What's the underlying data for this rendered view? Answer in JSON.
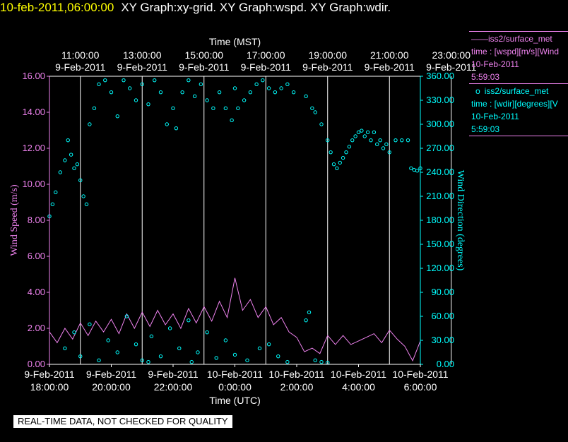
{
  "header": {
    "timestamp": "10-feb-2011,06:00:00",
    "titles": "XY Graph:xy-grid.  XY Graph:wspd.  XY Graph:wdir."
  },
  "disclaimer": "REAL-TIME DATA, NOT CHECKED FOR QUALITY",
  "colors": {
    "speed": "#ee82ee",
    "direction": "#00ffff",
    "grid": "#ffffff",
    "header_time": "#ffff00"
  },
  "legend": {
    "speed": {
      "symbol": "——",
      "line1": "iss2/surface_met",
      "line2": "time : [wspd][m/s][Wind",
      "line3": "10-Feb-2011",
      "line4": "5:59:03"
    },
    "direction": {
      "symbol": "o",
      "line1": "iss2/surface_met",
      "line2": "time : [wdir][degrees][V",
      "line3": "10-Feb-2011",
      "line4": "5:59:03"
    }
  },
  "chart_data": {
    "type": "line",
    "x_axis_top": {
      "title": "Time (MST)",
      "ticks": [
        {
          "t": 1,
          "time": "11:00:00",
          "date": "9-Feb-2011"
        },
        {
          "t": 3,
          "time": "13:00:00",
          "date": "9-Feb-2011"
        },
        {
          "t": 5,
          "time": "15:00:00",
          "date": "9-Feb-2011"
        },
        {
          "t": 7,
          "time": "17:00:00",
          "date": "9-Feb-2011"
        },
        {
          "t": 9,
          "time": "19:00:00",
          "date": "9-Feb-2011"
        },
        {
          "t": 11,
          "time": "21:00:00",
          "date": "9-Feb-2011"
        },
        {
          "t": 13,
          "time": "23:00:00",
          "date": "9-Feb-2011"
        }
      ]
    },
    "x_axis_bottom": {
      "title": "Time (UTC)",
      "range": [
        "9-Feb-2011 18:00:00",
        "10-Feb-2011 6:00:00"
      ],
      "ticks": [
        {
          "t": 0,
          "date": "9-Feb-2011",
          "time": "18:00:00"
        },
        {
          "t": 2,
          "date": "9-Feb-2011",
          "time": "20:00:00"
        },
        {
          "t": 4,
          "date": "9-Feb-2011",
          "time": "22:00:00"
        },
        {
          "t": 6,
          "date": "10-Feb-2011",
          "time": "0:00:00"
        },
        {
          "t": 8,
          "date": "10-Feb-2011",
          "time": "2:00:00"
        },
        {
          "t": 10,
          "date": "10-Feb-2011",
          "time": "4:00:00"
        },
        {
          "t": 12,
          "date": "10-Feb-2011",
          "time": "6:00:00"
        }
      ]
    },
    "y_axis_left": {
      "title": "Wind Speed (m/s)",
      "range": [
        0,
        16
      ],
      "ticks": [
        "0.00",
        "2.00",
        "4.00",
        "6.00",
        "8.00",
        "10.00",
        "12.00",
        "14.00",
        "16.00"
      ]
    },
    "y_axis_right": {
      "title": "Wind Direction (degrees)",
      "range": [
        0,
        360
      ],
      "ticks": [
        "0.00",
        "30.00",
        "60.00",
        "90.00",
        "120.00",
        "150.00",
        "180.00",
        "210.00",
        "240.00",
        "270.00",
        "300.00",
        "330.00",
        "360.00"
      ]
    },
    "grid": "vertical",
    "series": [
      {
        "name": "iss2/surface_met time : [wspd][m/s]",
        "style": "line",
        "axis": "left",
        "points": [
          [
            0,
            1.8
          ],
          [
            0.25,
            1.2
          ],
          [
            0.5,
            2.0
          ],
          [
            0.75,
            1.4
          ],
          [
            1.0,
            2.3
          ],
          [
            1.25,
            1.6
          ],
          [
            1.5,
            2.4
          ],
          [
            1.75,
            1.8
          ],
          [
            2.0,
            2.5
          ],
          [
            2.25,
            1.7
          ],
          [
            2.5,
            2.8
          ],
          [
            2.75,
            2.0
          ],
          [
            3.0,
            2.9
          ],
          [
            3.25,
            2.1
          ],
          [
            3.5,
            3.0
          ],
          [
            3.75,
            2.2
          ],
          [
            4.0,
            2.8
          ],
          [
            4.25,
            2.0
          ],
          [
            4.5,
            3.1
          ],
          [
            4.75,
            2.3
          ],
          [
            5.0,
            3.2
          ],
          [
            5.25,
            2.4
          ],
          [
            5.5,
            3.5
          ],
          [
            5.75,
            2.6
          ],
          [
            6.0,
            4.8
          ],
          [
            6.25,
            3.0
          ],
          [
            6.5,
            3.6
          ],
          [
            6.75,
            2.6
          ],
          [
            7.0,
            3.2
          ],
          [
            7.25,
            2.2
          ],
          [
            7.5,
            2.6
          ],
          [
            7.75,
            1.8
          ],
          [
            8.0,
            1.5
          ],
          [
            8.25,
            0.7
          ],
          [
            8.5,
            0.9
          ],
          [
            8.75,
            0.6
          ],
          [
            9.0,
            1.6
          ],
          [
            9.25,
            1.1
          ],
          [
            9.5,
            1.6
          ],
          [
            9.75,
            1.1
          ],
          [
            10.0,
            1.3
          ],
          [
            10.25,
            1.5
          ],
          [
            10.5,
            1.7
          ],
          [
            10.75,
            1.2
          ],
          [
            11.0,
            1.9
          ],
          [
            11.25,
            1.4
          ],
          [
            11.5,
            1.0
          ],
          [
            11.75,
            0.2
          ],
          [
            12.0,
            1.3
          ]
        ]
      },
      {
        "name": "iss2/surface_met time : [wdir][degrees]",
        "style": "markers",
        "axis": "right",
        "points": [
          [
            0,
            185
          ],
          [
            0.1,
            200
          ],
          [
            0.2,
            215
          ],
          [
            0.35,
            240
          ],
          [
            0.5,
            255
          ],
          [
            0.6,
            280
          ],
          [
            0.7,
            262
          ],
          [
            0.8,
            245
          ],
          [
            0.9,
            250
          ],
          [
            1.0,
            230
          ],
          [
            1.1,
            210
          ],
          [
            1.2,
            200
          ],
          [
            1.3,
            300
          ],
          [
            1.45,
            320
          ],
          [
            1.6,
            350
          ],
          [
            1.8,
            355
          ],
          [
            2.0,
            340
          ],
          [
            2.2,
            310
          ],
          [
            2.4,
            355
          ],
          [
            2.6,
            345
          ],
          [
            2.8,
            330
          ],
          [
            3.0,
            350
          ],
          [
            3.2,
            325
          ],
          [
            3.4,
            355
          ],
          [
            3.6,
            340
          ],
          [
            3.8,
            300
          ],
          [
            4.0,
            320
          ],
          [
            4.1,
            295
          ],
          [
            4.3,
            340
          ],
          [
            4.5,
            355
          ],
          [
            4.7,
            335
          ],
          [
            4.9,
            350
          ],
          [
            5.1,
            330
          ],
          [
            5.3,
            320
          ],
          [
            5.5,
            340
          ],
          [
            5.7,
            320
          ],
          [
            5.9,
            305
          ],
          [
            6.0,
            345
          ],
          [
            6.1,
            320
          ],
          [
            6.3,
            330
          ],
          [
            6.5,
            340
          ],
          [
            6.7,
            350
          ],
          [
            6.9,
            355
          ],
          [
            7.1,
            345
          ],
          [
            7.3,
            340
          ],
          [
            7.5,
            345
          ],
          [
            7.7,
            350
          ],
          [
            7.9,
            340
          ],
          [
            8.3,
            335
          ],
          [
            8.5,
            320
          ],
          [
            8.6,
            315
          ],
          [
            8.8,
            300
          ],
          [
            9.0,
            280
          ],
          [
            9.1,
            265
          ],
          [
            9.2,
            250
          ],
          [
            9.3,
            245
          ],
          [
            9.4,
            252
          ],
          [
            9.5,
            258
          ],
          [
            9.6,
            265
          ],
          [
            9.7,
            272
          ],
          [
            9.8,
            280
          ],
          [
            9.9,
            285
          ],
          [
            10.0,
            290
          ],
          [
            10.1,
            292
          ],
          [
            10.2,
            285
          ],
          [
            10.3,
            290
          ],
          [
            10.4,
            280
          ],
          [
            10.5,
            290
          ],
          [
            10.6,
            275
          ],
          [
            10.7,
            280
          ],
          [
            10.8,
            270
          ],
          [
            10.9,
            275
          ],
          [
            11.0,
            265
          ],
          [
            11.2,
            280
          ],
          [
            11.4,
            280
          ],
          [
            11.6,
            280
          ],
          [
            11.7,
            245
          ],
          [
            11.8,
            243
          ],
          [
            11.9,
            242
          ],
          [
            12.0,
            245
          ],
          [
            0.5,
            20
          ],
          [
            0.8,
            40
          ],
          [
            1.0,
            10
          ],
          [
            1.3,
            50
          ],
          [
            1.6,
            5
          ],
          [
            1.9,
            30
          ],
          [
            2.2,
            15
          ],
          [
            2.5,
            60
          ],
          [
            2.8,
            25
          ],
          [
            3.0,
            5
          ],
          [
            3.3,
            35
          ],
          [
            3.6,
            10
          ],
          [
            3.9,
            45
          ],
          [
            4.2,
            20
          ],
          [
            4.5,
            55
          ],
          [
            4.8,
            15
          ],
          [
            5.1,
            40
          ],
          [
            5.4,
            8
          ],
          [
            5.7,
            30
          ],
          [
            6.0,
            12
          ],
          [
            6.4,
            5
          ],
          [
            6.8,
            20
          ],
          [
            7.1,
            25
          ],
          [
            7.4,
            10
          ],
          [
            8.3,
            55
          ],
          [
            8.4,
            65
          ],
          [
            8.6,
            5
          ],
          [
            8.8,
            3
          ],
          [
            9.0,
            2
          ],
          [
            3.2,
            3
          ],
          [
            4.6,
            3
          ],
          [
            7.7,
            3
          ]
        ]
      }
    ]
  }
}
